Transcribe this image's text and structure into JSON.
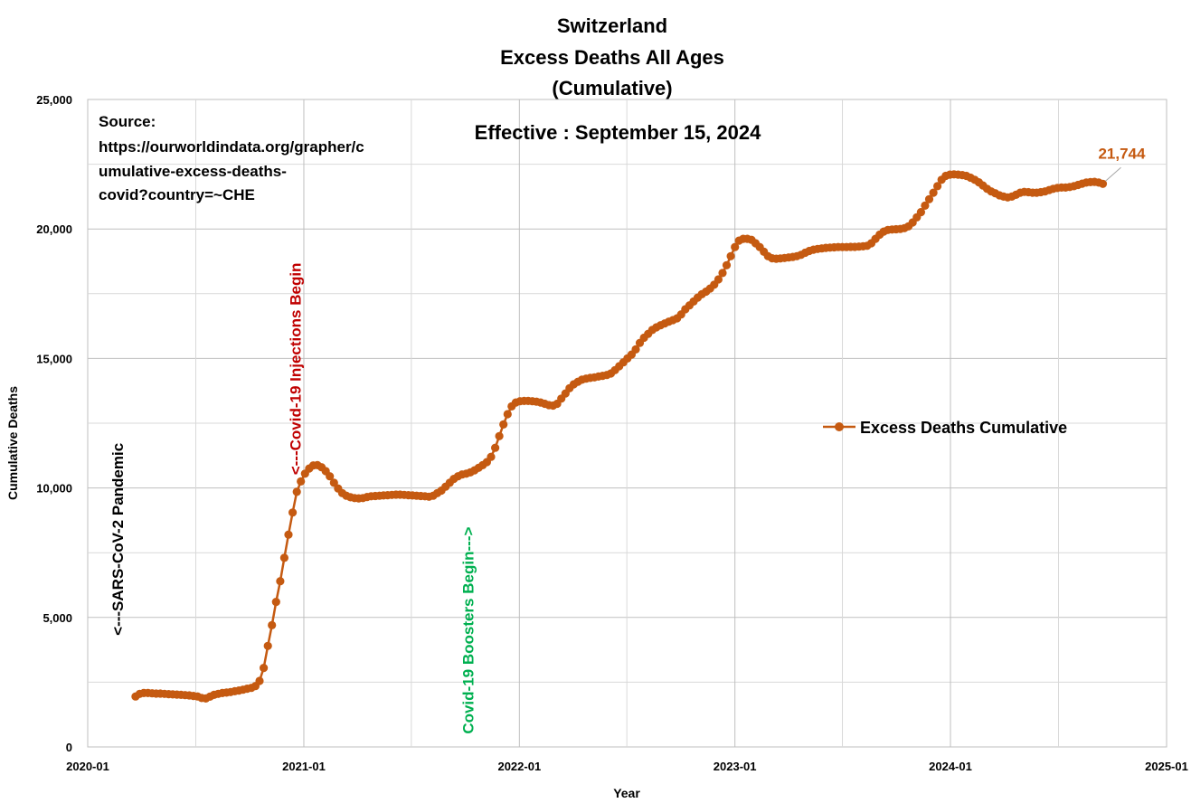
{
  "chart_data": {
    "type": "line",
    "title": [
      "Switzerland",
      "Excess Deaths All Ages",
      "(Cumulative)"
    ],
    "subtitle": "Effective : September 15, 2024",
    "source_lines": [
      "Source:",
      "https://ourworldindata.org/grapher/c",
      "umulative-excess-deaths-",
      "covid?country=~CHE"
    ],
    "xlabel": "Year",
    "ylabel": "Cumulative Deaths",
    "xlim": [
      "2020-01-01",
      "2025-01-01"
    ],
    "ylim": [
      0,
      25000
    ],
    "x_ticks": [
      {
        "date": "2020-01-01",
        "label": "2020-01"
      },
      {
        "date": "2021-01-01",
        "label": "2021-01"
      },
      {
        "date": "2022-01-01",
        "label": "2022-01"
      },
      {
        "date": "2023-01-01",
        "label": "2023-01"
      },
      {
        "date": "2024-01-01",
        "label": "2024-01"
      },
      {
        "date": "2025-01-01",
        "label": "2025-01"
      }
    ],
    "y_ticks": [
      {
        "value": 0,
        "label": "0"
      },
      {
        "value": 5000,
        "label": "5,000"
      },
      {
        "value": 10000,
        "label": "10,000"
      },
      {
        "value": 15000,
        "label": "15,000"
      },
      {
        "value": 20000,
        "label": "20,000"
      },
      {
        "value": 25000,
        "label": "25,000"
      }
    ],
    "grid": true,
    "legend_position": "right-middle",
    "series": [
      {
        "name": "Excess Deaths Cumulative",
        "color": "#c55a11",
        "points": [
          [
            "2020-03-22",
            1950
          ],
          [
            "2020-03-29",
            2050
          ],
          [
            "2020-04-05",
            2080
          ],
          [
            "2020-04-12",
            2080
          ],
          [
            "2020-04-19",
            2070
          ],
          [
            "2020-04-26",
            2060
          ],
          [
            "2020-05-03",
            2060
          ],
          [
            "2020-05-10",
            2050
          ],
          [
            "2020-05-17",
            2040
          ],
          [
            "2020-05-24",
            2030
          ],
          [
            "2020-05-31",
            2020
          ],
          [
            "2020-06-07",
            2010
          ],
          [
            "2020-06-14",
            2000
          ],
          [
            "2020-06-21",
            1990
          ],
          [
            "2020-06-28",
            1970
          ],
          [
            "2020-07-05",
            1950
          ],
          [
            "2020-07-12",
            1890
          ],
          [
            "2020-07-19",
            1870
          ],
          [
            "2020-07-26",
            1940
          ],
          [
            "2020-08-02",
            2010
          ],
          [
            "2020-08-09",
            2050
          ],
          [
            "2020-08-16",
            2080
          ],
          [
            "2020-08-23",
            2100
          ],
          [
            "2020-08-30",
            2120
          ],
          [
            "2020-09-06",
            2150
          ],
          [
            "2020-09-13",
            2180
          ],
          [
            "2020-09-20",
            2210
          ],
          [
            "2020-09-27",
            2250
          ],
          [
            "2020-10-04",
            2280
          ],
          [
            "2020-10-11",
            2350
          ],
          [
            "2020-10-18",
            2550
          ],
          [
            "2020-10-25",
            3050
          ],
          [
            "2020-11-01",
            3900
          ],
          [
            "2020-11-08",
            4700
          ],
          [
            "2020-11-15",
            5600
          ],
          [
            "2020-11-22",
            6400
          ],
          [
            "2020-11-29",
            7300
          ],
          [
            "2020-12-06",
            8200
          ],
          [
            "2020-12-13",
            9050
          ],
          [
            "2020-12-20",
            9850
          ],
          [
            "2020-12-27",
            10250
          ],
          [
            "2021-01-03",
            10550
          ],
          [
            "2021-01-10",
            10750
          ],
          [
            "2021-01-17",
            10870
          ],
          [
            "2021-01-24",
            10880
          ],
          [
            "2021-01-31",
            10800
          ],
          [
            "2021-02-07",
            10650
          ],
          [
            "2021-02-14",
            10450
          ],
          [
            "2021-02-21",
            10200
          ],
          [
            "2021-02-28",
            9980
          ],
          [
            "2021-03-07",
            9800
          ],
          [
            "2021-03-14",
            9700
          ],
          [
            "2021-03-21",
            9640
          ],
          [
            "2021-03-28",
            9610
          ],
          [
            "2021-04-04",
            9600
          ],
          [
            "2021-04-11",
            9610
          ],
          [
            "2021-04-18",
            9650
          ],
          [
            "2021-04-25",
            9680
          ],
          [
            "2021-05-02",
            9690
          ],
          [
            "2021-05-09",
            9700
          ],
          [
            "2021-05-16",
            9710
          ],
          [
            "2021-05-23",
            9720
          ],
          [
            "2021-05-30",
            9730
          ],
          [
            "2021-06-06",
            9740
          ],
          [
            "2021-06-13",
            9740
          ],
          [
            "2021-06-20",
            9730
          ],
          [
            "2021-06-27",
            9720
          ],
          [
            "2021-07-04",
            9710
          ],
          [
            "2021-07-11",
            9700
          ],
          [
            "2021-07-18",
            9690
          ],
          [
            "2021-07-25",
            9680
          ],
          [
            "2021-08-01",
            9660
          ],
          [
            "2021-08-08",
            9700
          ],
          [
            "2021-08-15",
            9800
          ],
          [
            "2021-08-22",
            9900
          ],
          [
            "2021-08-29",
            10050
          ],
          [
            "2021-09-05",
            10200
          ],
          [
            "2021-09-12",
            10350
          ],
          [
            "2021-09-19",
            10450
          ],
          [
            "2021-09-26",
            10520
          ],
          [
            "2021-10-03",
            10550
          ],
          [
            "2021-10-10",
            10600
          ],
          [
            "2021-10-17",
            10680
          ],
          [
            "2021-10-24",
            10780
          ],
          [
            "2021-10-31",
            10880
          ],
          [
            "2021-11-07",
            11000
          ],
          [
            "2021-11-14",
            11200
          ],
          [
            "2021-11-21",
            11550
          ],
          [
            "2021-11-28",
            12000
          ],
          [
            "2021-12-05",
            12450
          ],
          [
            "2021-12-12",
            12850
          ],
          [
            "2021-12-19",
            13150
          ],
          [
            "2021-12-26",
            13300
          ],
          [
            "2022-01-02",
            13350
          ],
          [
            "2022-01-09",
            13360
          ],
          [
            "2022-01-16",
            13360
          ],
          [
            "2022-01-23",
            13350
          ],
          [
            "2022-01-30",
            13330
          ],
          [
            "2022-02-06",
            13300
          ],
          [
            "2022-02-13",
            13250
          ],
          [
            "2022-02-20",
            13200
          ],
          [
            "2022-02-27",
            13180
          ],
          [
            "2022-03-06",
            13250
          ],
          [
            "2022-03-13",
            13450
          ],
          [
            "2022-03-20",
            13650
          ],
          [
            "2022-03-27",
            13850
          ],
          [
            "2022-04-03",
            14000
          ],
          [
            "2022-04-10",
            14100
          ],
          [
            "2022-04-17",
            14180
          ],
          [
            "2022-04-24",
            14220
          ],
          [
            "2022-05-01",
            14250
          ],
          [
            "2022-05-08",
            14270
          ],
          [
            "2022-05-15",
            14300
          ],
          [
            "2022-05-22",
            14330
          ],
          [
            "2022-05-29",
            14360
          ],
          [
            "2022-06-05",
            14420
          ],
          [
            "2022-06-12",
            14550
          ],
          [
            "2022-06-19",
            14700
          ],
          [
            "2022-06-26",
            14850
          ],
          [
            "2022-07-03",
            15000
          ],
          [
            "2022-07-10",
            15150
          ],
          [
            "2022-07-17",
            15350
          ],
          [
            "2022-07-24",
            15600
          ],
          [
            "2022-07-31",
            15800
          ],
          [
            "2022-08-07",
            15950
          ],
          [
            "2022-08-14",
            16100
          ],
          [
            "2022-08-21",
            16200
          ],
          [
            "2022-08-28",
            16280
          ],
          [
            "2022-09-04",
            16350
          ],
          [
            "2022-09-11",
            16420
          ],
          [
            "2022-09-18",
            16480
          ],
          [
            "2022-09-25",
            16550
          ],
          [
            "2022-10-02",
            16700
          ],
          [
            "2022-10-09",
            16900
          ],
          [
            "2022-10-16",
            17050
          ],
          [
            "2022-10-23",
            17200
          ],
          [
            "2022-10-30",
            17350
          ],
          [
            "2022-11-06",
            17480
          ],
          [
            "2022-11-13",
            17580
          ],
          [
            "2022-11-20",
            17700
          ],
          [
            "2022-11-27",
            17850
          ],
          [
            "2022-12-04",
            18050
          ],
          [
            "2022-12-11",
            18300
          ],
          [
            "2022-12-18",
            18600
          ],
          [
            "2022-12-25",
            18950
          ],
          [
            "2023-01-01",
            19300
          ],
          [
            "2023-01-08",
            19550
          ],
          [
            "2023-01-15",
            19620
          ],
          [
            "2023-01-22",
            19620
          ],
          [
            "2023-01-29",
            19580
          ],
          [
            "2023-02-05",
            19450
          ],
          [
            "2023-02-12",
            19300
          ],
          [
            "2023-02-19",
            19120
          ],
          [
            "2023-02-26",
            18950
          ],
          [
            "2023-03-05",
            18870
          ],
          [
            "2023-03-12",
            18850
          ],
          [
            "2023-03-19",
            18860
          ],
          [
            "2023-03-26",
            18880
          ],
          [
            "2023-04-02",
            18900
          ],
          [
            "2023-04-09",
            18920
          ],
          [
            "2023-04-16",
            18950
          ],
          [
            "2023-04-23",
            19000
          ],
          [
            "2023-04-30",
            19080
          ],
          [
            "2023-05-07",
            19150
          ],
          [
            "2023-05-14",
            19200
          ],
          [
            "2023-05-21",
            19230
          ],
          [
            "2023-05-28",
            19250
          ],
          [
            "2023-06-04",
            19270
          ],
          [
            "2023-06-11",
            19280
          ],
          [
            "2023-06-18",
            19290
          ],
          [
            "2023-06-25",
            19300
          ],
          [
            "2023-07-02",
            19300
          ],
          [
            "2023-07-09",
            19300
          ],
          [
            "2023-07-16",
            19310
          ],
          [
            "2023-07-23",
            19310
          ],
          [
            "2023-07-30",
            19320
          ],
          [
            "2023-08-06",
            19330
          ],
          [
            "2023-08-13",
            19350
          ],
          [
            "2023-08-20",
            19450
          ],
          [
            "2023-08-27",
            19620
          ],
          [
            "2023-09-03",
            19780
          ],
          [
            "2023-09-10",
            19900
          ],
          [
            "2023-09-17",
            19960
          ],
          [
            "2023-09-24",
            19980
          ],
          [
            "2023-10-01",
            19990
          ],
          [
            "2023-10-08",
            20000
          ],
          [
            "2023-10-15",
            20030
          ],
          [
            "2023-10-22",
            20100
          ],
          [
            "2023-10-29",
            20250
          ],
          [
            "2023-11-05",
            20450
          ],
          [
            "2023-11-12",
            20650
          ],
          [
            "2023-11-19",
            20900
          ],
          [
            "2023-11-26",
            21150
          ],
          [
            "2023-12-03",
            21400
          ],
          [
            "2023-12-10",
            21650
          ],
          [
            "2023-12-17",
            21900
          ],
          [
            "2023-12-24",
            22050
          ],
          [
            "2023-12-31",
            22100
          ],
          [
            "2024-01-07",
            22110
          ],
          [
            "2024-01-14",
            22100
          ],
          [
            "2024-01-21",
            22080
          ],
          [
            "2024-01-28",
            22050
          ],
          [
            "2024-02-04",
            21980
          ],
          [
            "2024-02-11",
            21900
          ],
          [
            "2024-02-18",
            21800
          ],
          [
            "2024-02-25",
            21680
          ],
          [
            "2024-03-03",
            21550
          ],
          [
            "2024-03-10",
            21450
          ],
          [
            "2024-03-17",
            21380
          ],
          [
            "2024-03-24",
            21300
          ],
          [
            "2024-03-31",
            21250
          ],
          [
            "2024-04-07",
            21220
          ],
          [
            "2024-04-14",
            21250
          ],
          [
            "2024-04-21",
            21320
          ],
          [
            "2024-04-28",
            21400
          ],
          [
            "2024-05-05",
            21430
          ],
          [
            "2024-05-12",
            21420
          ],
          [
            "2024-05-19",
            21400
          ],
          [
            "2024-05-26",
            21400
          ],
          [
            "2024-06-02",
            21420
          ],
          [
            "2024-06-09",
            21450
          ],
          [
            "2024-06-16",
            21500
          ],
          [
            "2024-06-23",
            21550
          ],
          [
            "2024-06-30",
            21580
          ],
          [
            "2024-07-07",
            21600
          ],
          [
            "2024-07-14",
            21600
          ],
          [
            "2024-07-21",
            21620
          ],
          [
            "2024-07-28",
            21650
          ],
          [
            "2024-08-04",
            21700
          ],
          [
            "2024-08-11",
            21750
          ],
          [
            "2024-08-18",
            21790
          ],
          [
            "2024-08-25",
            21810
          ],
          [
            "2024-09-01",
            21820
          ],
          [
            "2024-09-08",
            21790
          ],
          [
            "2024-09-15",
            21744
          ]
        ]
      }
    ],
    "last_value_label": "21,744",
    "annotations": [
      {
        "text": "<---SARS-CoV-2 Pandemic",
        "color": "#000000",
        "date": "2020-03-01",
        "value": 4300,
        "rotation": -90
      },
      {
        "text": "<---Covid-19 Injections Begin",
        "color": "#c00000",
        "date": "2020-12-27",
        "value": 10500,
        "rotation": -90
      },
      {
        "text": "Covid-19 Boosters Begin--->",
        "color": "#00b050",
        "date": "2021-10-15",
        "value": 500,
        "rotation": -90
      }
    ]
  }
}
